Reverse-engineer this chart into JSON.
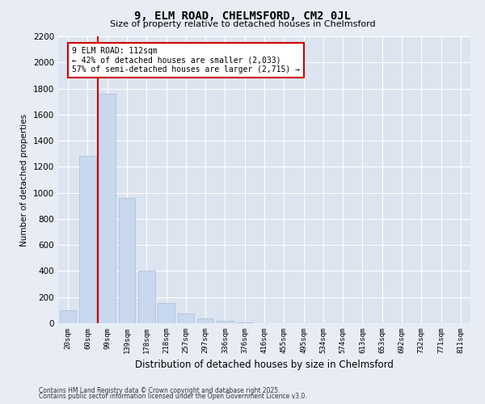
{
  "title1": "9, ELM ROAD, CHELMSFORD, CM2 0JL",
  "title2": "Size of property relative to detached houses in Chelmsford",
  "xlabel": "Distribution of detached houses by size in Chelmsford",
  "ylabel": "Number of detached properties",
  "categories": [
    "20sqm",
    "60sqm",
    "99sqm",
    "139sqm",
    "178sqm",
    "218sqm",
    "257sqm",
    "297sqm",
    "336sqm",
    "376sqm",
    "416sqm",
    "455sqm",
    "495sqm",
    "534sqm",
    "574sqm",
    "613sqm",
    "653sqm",
    "692sqm",
    "732sqm",
    "771sqm",
    "811sqm"
  ],
  "values": [
    100,
    1280,
    1760,
    960,
    400,
    155,
    75,
    40,
    20,
    8,
    0,
    0,
    0,
    0,
    0,
    0,
    0,
    0,
    0,
    0,
    0
  ],
  "bar_color": "#c8d8ee",
  "bar_edge_color": "#a8bcd8",
  "vline_x_pos": 1.5,
  "vline_color": "#cc0000",
  "ylim": [
    0,
    2200
  ],
  "yticks": [
    0,
    200,
    400,
    600,
    800,
    1000,
    1200,
    1400,
    1600,
    1800,
    2000,
    2200
  ],
  "annotation_text": "9 ELM ROAD: 112sqm\n← 42% of detached houses are smaller (2,033)\n57% of semi-detached houses are larger (2,715) →",
  "annotation_box_facecolor": "#ffffff",
  "annotation_box_edgecolor": "#cc0000",
  "footer1": "Contains HM Land Registry data © Crown copyright and database right 2025.",
  "footer2": "Contains public sector information licensed under the Open Government Licence v3.0.",
  "bg_color": "#e8edf5",
  "plot_bg_color": "#dce4f0"
}
